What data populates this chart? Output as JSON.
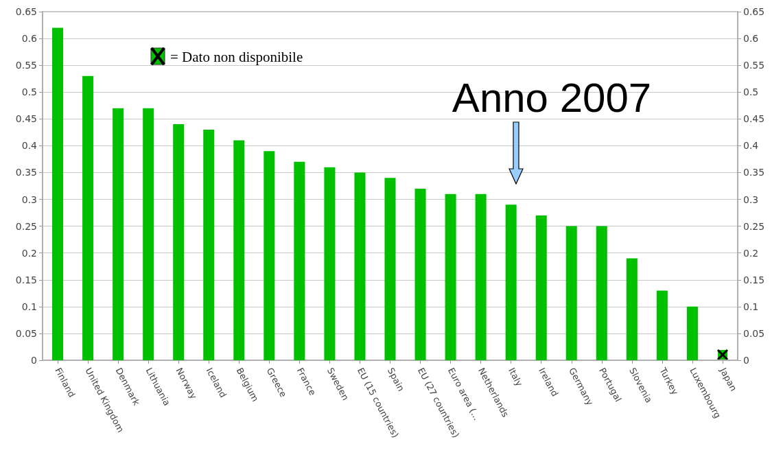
{
  "chart_data": {
    "type": "bar",
    "categories": [
      "Finland",
      "United Kingdom",
      "Denmark",
      "Lithuania",
      "Norway",
      "Iceland",
      "Belgium",
      "Greece",
      "France",
      "Sweden",
      "EU (15 countries)",
      "Spain",
      "EU (27 countries)",
      "Euro area (...",
      "Netherlands",
      "Italy",
      "Ireland",
      "Germany",
      "Portugal",
      "Slovenia",
      "Turkey",
      "Luxembourg",
      "Japan"
    ],
    "values": [
      0.62,
      0.53,
      0.47,
      0.47,
      0.44,
      0.43,
      0.41,
      0.39,
      0.37,
      0.36,
      0.35,
      0.34,
      0.32,
      0.31,
      0.31,
      0.29,
      0.27,
      0.25,
      0.25,
      0.19,
      0.13,
      0.1,
      null
    ],
    "color": "#00c000",
    "ylim": [
      0,
      0.65
    ],
    "yticks": [
      0,
      0.05,
      0.1,
      0.15,
      0.2,
      0.25,
      0.3,
      0.35,
      0.4,
      0.45,
      0.5,
      0.55,
      0.6,
      0.65
    ],
    "y2lim": [
      0,
      0.65
    ],
    "y2ticks": [
      0,
      0.05,
      0.1,
      0.15,
      0.2,
      0.25,
      0.3,
      0.35,
      0.4,
      0.45,
      0.5,
      0.55,
      0.6,
      0.65
    ],
    "grid": "y",
    "annotations": [
      "= Dato non disponibile",
      "Anno 2007"
    ]
  }
}
